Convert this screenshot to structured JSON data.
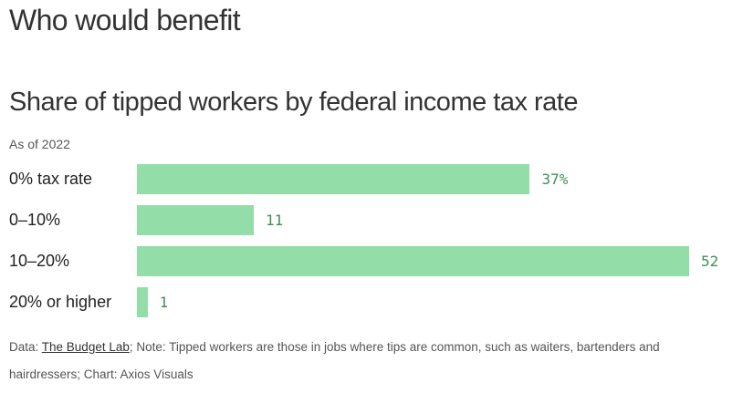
{
  "headline": "Who would benefit",
  "chart_data": {
    "type": "bar",
    "orientation": "horizontal",
    "title": "Share of tipped workers by federal income tax rate",
    "subtitle": "As of 2022",
    "categories": [
      "0% tax rate",
      "0–10%",
      "10–20%",
      "20% or higher"
    ],
    "values": [
      37,
      11,
      52,
      1
    ],
    "value_labels": [
      "37%",
      "11",
      "52",
      "1"
    ],
    "xlim": [
      0,
      52
    ],
    "grid": false,
    "legend": "none",
    "bar_color": "#93dea8",
    "value_label_color": "#3f8f58"
  },
  "footer": {
    "data_prefix": "Data: ",
    "source_link": "The Budget Lab",
    "note": "; Note: Tipped workers are those in jobs where tips are common, such as waiters, bartenders and hairdressers; Chart: Axios Visuals"
  }
}
